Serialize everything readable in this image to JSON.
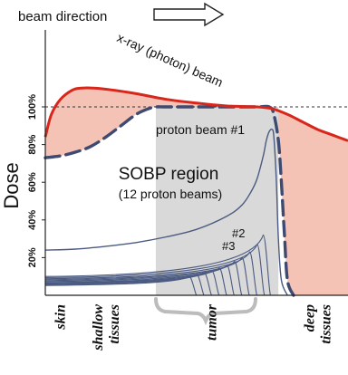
{
  "chart_data": {
    "type": "line",
    "ylabel": "Dose",
    "yticks": [
      "20%",
      "40%",
      "60%",
      "80%",
      "100%"
    ],
    "ylim": [
      0,
      110
    ],
    "xlim": [
      0,
      100
    ],
    "reference_line_y": 100,
    "header": {
      "label": "beam direction"
    },
    "annotations": {
      "xray": "x-ray (photon) beam",
      "proton1": "proton beam #1",
      "sobp_title": "SOBP region",
      "sobp_sub": "(12 proton beams)",
      "b2": "#2",
      "b3": "#3"
    },
    "x_categories": [
      {
        "lines": [
          "skin"
        ],
        "x": 5
      },
      {
        "lines": [
          "shallow",
          "tissues"
        ],
        "x": 20
      },
      {
        "lines": [
          "tumor"
        ],
        "x": 55
      },
      {
        "lines": [
          "deep",
          "tissues"
        ],
        "x": 90
      }
    ],
    "sobp_range": [
      36.5,
      77
    ],
    "xray_beam": {
      "x": [
        0,
        2,
        5,
        9,
        12,
        16,
        22,
        30,
        40,
        50,
        60,
        70,
        75,
        80,
        85,
        90,
        95,
        100
      ],
      "y": [
        84,
        96,
        104,
        109,
        110,
        110,
        109,
        107,
        104,
        102,
        100.5,
        100,
        99,
        96,
        92,
        88,
        85,
        82
      ]
    },
    "sobp_curve": {
      "x": [
        0,
        5,
        10,
        15,
        20,
        25,
        30,
        34,
        36.5,
        40,
        50,
        60,
        70,
        74,
        75.5,
        77,
        78,
        79,
        80,
        82
      ],
      "y": [
        73,
        74,
        76,
        79,
        84,
        90,
        96,
        99,
        100,
        100,
        100,
        100,
        100,
        100,
        96,
        82,
        60,
        32,
        8,
        0
      ]
    },
    "proton_beam_1": {
      "x": [
        0,
        10,
        20,
        30,
        40,
        50,
        60,
        65,
        68,
        70,
        72,
        73,
        74,
        75,
        75.5,
        76.3,
        77,
        78,
        80
      ],
      "y": [
        24,
        24.5,
        26,
        28,
        31,
        35,
        42,
        48,
        55,
        62,
        74,
        82,
        87,
        88,
        84,
        62,
        30,
        8,
        0
      ]
    },
    "small_beams": {
      "peak_x": [
        72,
        70,
        67.5,
        65,
        62.5,
        60,
        57.5,
        55,
        52.5,
        50,
        47.5
      ],
      "peak_y": [
        32,
        27,
        23,
        20,
        18,
        16,
        14.5,
        13,
        12,
        11,
        10
      ],
      "entrance_y": [
        10,
        9.4,
        8.8,
        8.3,
        7.8,
        7.3,
        6.8,
        6.4,
        6.0,
        5.6,
        5.2
      ]
    }
  }
}
